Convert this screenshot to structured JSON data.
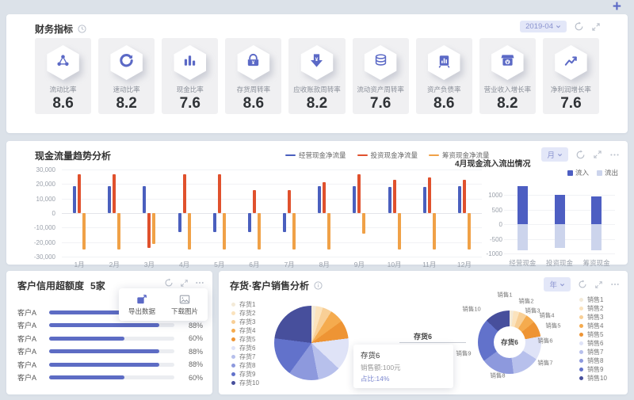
{
  "page": {
    "add_icon": "+"
  },
  "finance": {
    "title": "财务指标",
    "period": "2019-04",
    "kpis": [
      {
        "label": "流动比率",
        "value": "8.6",
        "icon": "share-nodes"
      },
      {
        "label": "速动比率",
        "value": "8.2",
        "icon": "refresh-circle"
      },
      {
        "label": "现金比率",
        "value": "7.6",
        "icon": "bar-chart"
      },
      {
        "label": "存货周转率",
        "value": "8.6",
        "icon": "cash-register"
      },
      {
        "label": "应收账款周转率",
        "value": "8.2",
        "icon": "arrow-down-yen"
      },
      {
        "label": "流动资产周转率",
        "value": "7.6",
        "icon": "coins-yen"
      },
      {
        "label": "资产负债率",
        "value": "8.6",
        "icon": "briefcase-chart"
      },
      {
        "label": "营业收入增长率",
        "value": "8.2",
        "icon": "shop-coin"
      },
      {
        "label": "净利润增长率",
        "value": "7.6",
        "icon": "trend-up"
      }
    ]
  },
  "cashflow": {
    "title": "现金流量趋势分析",
    "period": "月",
    "subpanel": {
      "title": "4月现金流入流出情况"
    }
  },
  "credit": {
    "title": "客户信用超额度",
    "count": "5家",
    "menu": [
      {
        "label": "导出数据",
        "icon": "export-icon"
      },
      {
        "label": "下载图片",
        "icon": "image-icon"
      }
    ],
    "rows": [
      {
        "label": "客户A",
        "value": 88,
        "display": "88%"
      },
      {
        "label": "客户A",
        "value": 88,
        "display": "88%"
      },
      {
        "label": "客户A",
        "value": 60,
        "display": "60%"
      },
      {
        "label": "客户A",
        "value": 88,
        "display": "88%"
      },
      {
        "label": "客户A",
        "value": 88,
        "display": "88%"
      },
      {
        "label": "客户A",
        "value": 60,
        "display": "60%"
      }
    ]
  },
  "sales": {
    "title": "存货·客户销售分析",
    "period": "年",
    "pie_label": "存货6",
    "donut_center": "存货6",
    "tooltip": {
      "name": "存货6",
      "line1": "销售额:100元",
      "line2": "占比:14%"
    }
  },
  "chart_data": [
    {
      "id": "cashflow_trend",
      "type": "bar",
      "title": "现金流量趋势分析",
      "categories": [
        "1月",
        "2月",
        "3月",
        "4月",
        "5月",
        "6月",
        "7月",
        "8月",
        "9月",
        "10月",
        "11月",
        "12月"
      ],
      "series": [
        {
          "name": "经营现金净流量",
          "color": "#4a5fbe",
          "values": [
            18500,
            18500,
            18500,
            -13000,
            -13000,
            -13000,
            -13000,
            18500,
            18500,
            18000,
            18000,
            18500
          ]
        },
        {
          "name": "投资现金净流量",
          "color": "#e0512d",
          "values": [
            27000,
            27000,
            -24000,
            27000,
            27000,
            16000,
            16000,
            21500,
            27000,
            23000,
            24500,
            23000
          ]
        },
        {
          "name": "筹资现金净流量",
          "color": "#f0a147",
          "values": [
            -25000,
            -25000,
            -21000,
            -25000,
            -25000,
            -25000,
            -25000,
            -25000,
            -14000,
            -25000,
            -25000,
            -25000
          ]
        }
      ],
      "ylim": [
        -30000,
        30000
      ],
      "yticks": [
        "30,000",
        "20,000",
        "10,000",
        "0",
        "-10,000",
        "-20,000",
        "-30,000"
      ],
      "grid": true,
      "legend_position": "top"
    },
    {
      "id": "inflow_outflow",
      "type": "bar",
      "title": "4月现金流入流出情况",
      "categories": [
        "经营现金",
        "投资现金",
        "筹资现金"
      ],
      "series": [
        {
          "name": "流入",
          "color": "#4d5ec2",
          "values": [
            1300,
            1000,
            950
          ]
        },
        {
          "name": "流出",
          "color": "#ccd4ec",
          "values": [
            -900,
            -800,
            -900
          ]
        }
      ],
      "ylim": [
        -1000,
        1500
      ],
      "yticks": [
        "1000",
        "500",
        "0",
        "-500",
        "-1000"
      ],
      "grid": true,
      "legend_position": "top-right"
    },
    {
      "id": "credit_bars",
      "type": "bar",
      "title": "客户信用超额度",
      "categories": [
        "客户A",
        "客户A",
        "客户A",
        "客户A",
        "客户A",
        "客户A"
      ],
      "values": [
        88,
        88,
        60,
        88,
        88,
        60
      ],
      "xlabel": "",
      "ylabel": "",
      "ylim": [
        0,
        100
      ]
    },
    {
      "id": "inventory_pie",
      "type": "pie",
      "title": "存货·客户销售分析",
      "labels": [
        "存货1",
        "存货2",
        "存货3",
        "存货4",
        "存货5",
        "存货6",
        "存货7",
        "存货8",
        "存货9",
        "存货10"
      ],
      "values": [
        2,
        3,
        4,
        6,
        8,
        14,
        10,
        13,
        17,
        23
      ],
      "colors": [
        "#f3ead8",
        "#fbe3bd",
        "#f8cf96",
        "#f5ab4e",
        "#ee9434",
        "#dfe3f7",
        "#b7c0ec",
        "#8d99dd",
        "#6272cb",
        "#474f9c"
      ],
      "highlight": {
        "label": "存货6",
        "amount": "销售额:100元",
        "share": "占比:14%"
      }
    },
    {
      "id": "sales_donut",
      "type": "pie",
      "title": "销售分析",
      "labels": [
        "销售1",
        "销售2",
        "销售3",
        "销售4",
        "销售5",
        "销售6",
        "销售7",
        "销售8",
        "销售9",
        "销售10"
      ],
      "values": [
        2,
        3,
        4,
        5,
        8,
        12,
        14,
        17,
        22,
        13
      ],
      "colors": [
        "#f3ead8",
        "#fbe3bd",
        "#f8cf96",
        "#f5ab4e",
        "#ee9434",
        "#dfe3f7",
        "#b7c0ec",
        "#8d99dd",
        "#6272cb",
        "#474f9c"
      ],
      "center_label": "存货6"
    }
  ]
}
